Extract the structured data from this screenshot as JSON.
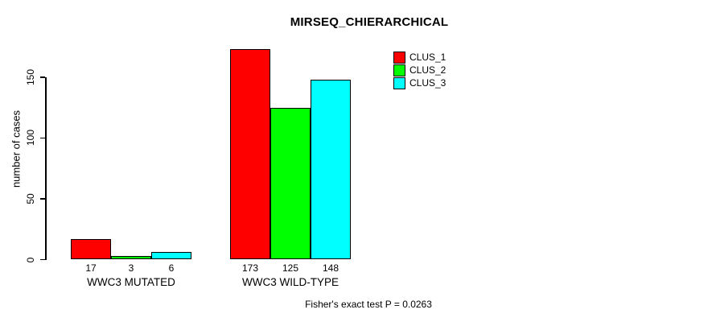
{
  "chart_data": {
    "type": "bar",
    "title": "MIRSEQ_CHIERARCHICAL",
    "categories": [
      "WWC3 MUTATED",
      "WWC3 WILD-TYPE"
    ],
    "series": [
      {
        "name": "CLUS_1",
        "color": "#ff0000",
        "values": [
          17,
          173
        ]
      },
      {
        "name": "CLUS_2",
        "color": "#00ff00",
        "values": [
          3,
          125
        ]
      },
      {
        "name": "CLUS_3",
        "color": "#00ffff",
        "values": [
          6,
          148
        ]
      }
    ],
    "xlabel": "",
    "ylabel": "number of cases",
    "yticks": [
      0,
      50,
      100,
      150
    ],
    "ylim": [
      0,
      173
    ],
    "grid": false,
    "legend_position": "top-right",
    "bar_value_labels": [
      [
        17,
        3,
        6
      ],
      [
        173,
        125,
        148
      ]
    ],
    "bar_border_color": "#000000",
    "annotation": "Fisher's exact test P = 0.0263"
  }
}
